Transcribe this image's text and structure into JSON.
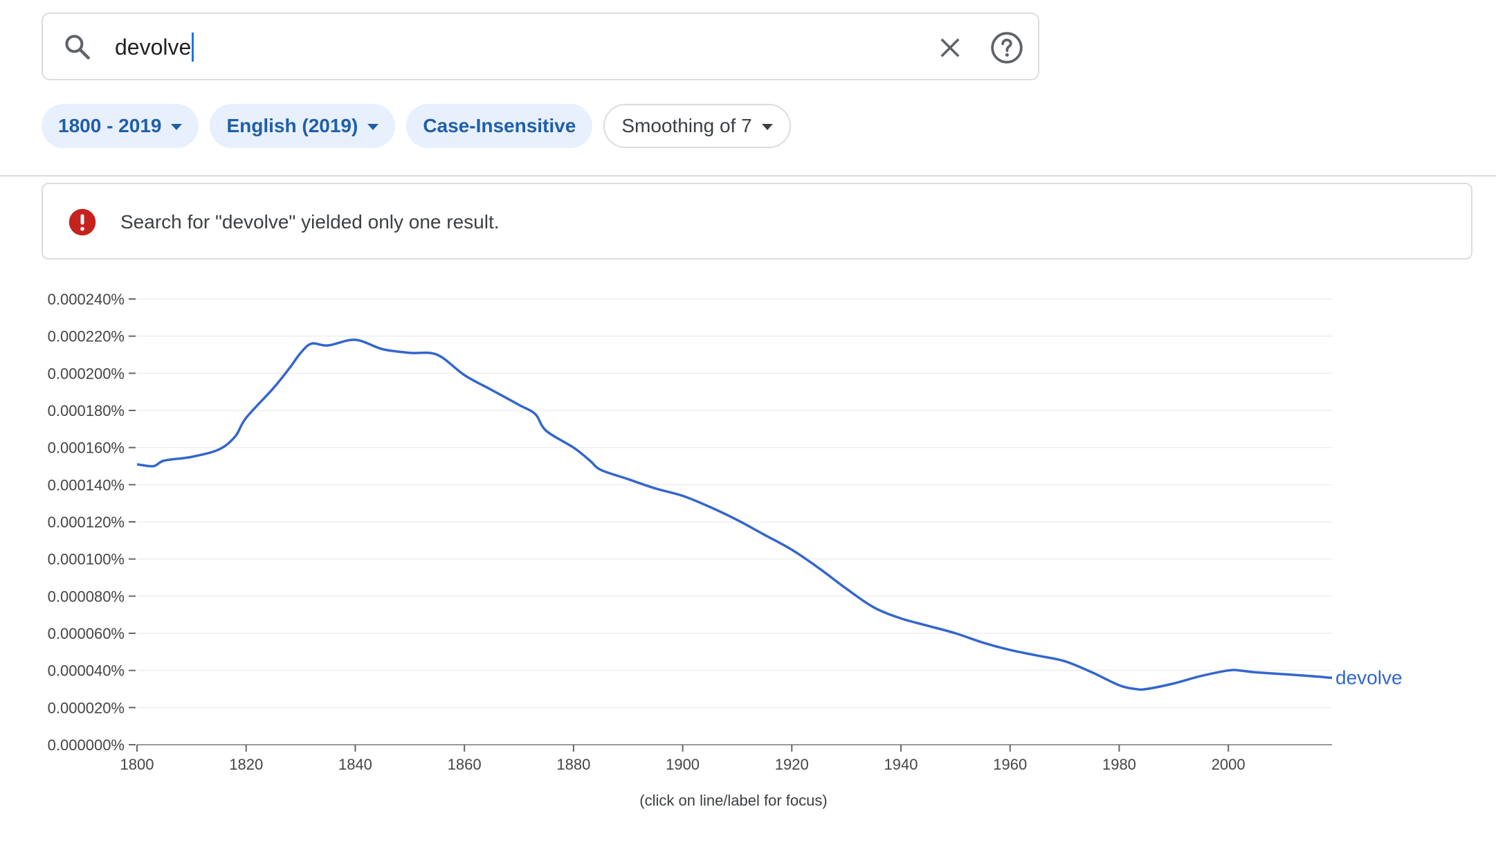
{
  "search": {
    "query": "devolve"
  },
  "chips": [
    {
      "label": "1800 - 2019",
      "style": "filled",
      "dropdown": true
    },
    {
      "label": "English (2019)",
      "style": "filled",
      "dropdown": true
    },
    {
      "label": "Case-Insensitive",
      "style": "filled",
      "dropdown": false
    },
    {
      "label": "Smoothing of 7",
      "style": "outlined",
      "dropdown": true
    }
  ],
  "alert": {
    "message": "Search for \"devolve\" yielded only one result.",
    "icon": "error-icon",
    "color": "#c5221f"
  },
  "footnote": "(click on line/label for focus)",
  "colors": {
    "series": "#3366cc",
    "chip_bg": "#e8f0fe",
    "chip_text": "#1f5fa8"
  },
  "chart_data": {
    "type": "line",
    "title": "",
    "xlabel": "",
    "ylabel": "",
    "xlim": [
      1800,
      2019
    ],
    "ylim": [
      0,
      0.00024
    ],
    "x_ticks": [
      1800,
      1820,
      1840,
      1860,
      1880,
      1900,
      1920,
      1940,
      1960,
      1980,
      2000
    ],
    "x_tick_labels": [
      "1800",
      "1820",
      "1840",
      "1860",
      "1880",
      "1900",
      "1920",
      "1940",
      "1960",
      "1980",
      "2000"
    ],
    "y_ticks": [
      0,
      2e-05,
      4e-05,
      6e-05,
      8e-05,
      0.0001,
      0.00012,
      0.00014,
      0.00016,
      0.00018,
      0.0002,
      0.00022,
      0.00024
    ],
    "y_tick_labels": [
      "0.000000%",
      "0.000020%",
      "0.000040%",
      "0.000060%",
      "0.000080%",
      "0.000100%",
      "0.000120%",
      "0.000140%",
      "0.000160%",
      "0.000180%",
      "0.000200%",
      "0.000220%",
      "0.000240%"
    ],
    "grid": true,
    "series": [
      {
        "name": "devolve",
        "x": [
          1800,
          1803,
          1805,
          1810,
          1815,
          1818,
          1820,
          1825,
          1828,
          1830,
          1832,
          1835,
          1840,
          1845,
          1850,
          1855,
          1860,
          1865,
          1870,
          1873,
          1875,
          1880,
          1883,
          1885,
          1890,
          1895,
          1900,
          1905,
          1910,
          1915,
          1920,
          1925,
          1930,
          1935,
          1940,
          1945,
          1950,
          1955,
          1960,
          1965,
          1970,
          1975,
          1980,
          1983,
          1985,
          1990,
          1995,
          2000,
          2002,
          2005,
          2010,
          2015,
          2019
        ],
        "values": [
          0.000151,
          0.00015,
          0.000153,
          0.000155,
          0.000159,
          0.000166,
          0.000176,
          0.000192,
          0.000203,
          0.000211,
          0.000216,
          0.000215,
          0.000218,
          0.000213,
          0.000211,
          0.00021,
          0.000199,
          0.000191,
          0.000183,
          0.000178,
          0.000169,
          0.00016,
          0.000153,
          0.000148,
          0.000143,
          0.000138,
          0.000134,
          0.000128,
          0.000121,
          0.000113,
          0.000105,
          9.5e-05,
          8.4e-05,
          7.4e-05,
          6.8e-05,
          6.4e-05,
          6e-05,
          5.5e-05,
          5.1e-05,
          4.8e-05,
          4.5e-05,
          3.9e-05,
          3.2e-05,
          3e-05,
          3e-05,
          3.3e-05,
          3.7e-05,
          4e-05,
          4e-05,
          3.9e-05,
          3.8e-05,
          3.7e-05,
          3.6e-05
        ]
      }
    ]
  }
}
